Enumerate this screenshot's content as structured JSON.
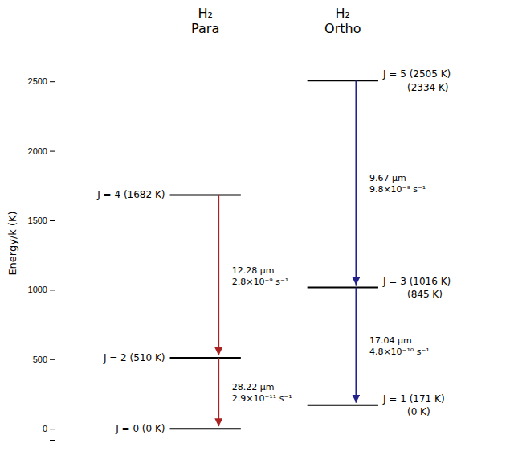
{
  "chart_data": {
    "type": "energy_level",
    "ylabel": "Energy/k (K)",
    "ylim": [
      -80,
      2750
    ],
    "yticks": [
      0,
      500,
      1000,
      1500,
      2000,
      2500
    ],
    "groups": [
      {
        "title": [
          "H₂",
          "Para"
        ],
        "levels": {
          "color": "#000000",
          "values": [
            0,
            510,
            1682
          ],
          "labels": [
            [
              "J = 0  (0 K)"
            ],
            [
              "J = 2  (510 K)"
            ],
            [
              "J = 4  (1682 K)"
            ]
          ]
        },
        "transitions": {
          "color": "#aa2222",
          "from": [
            1682,
            510
          ],
          "to": [
            510,
            0
          ],
          "labels": [
            [
              "12.28 μm",
              "2.8×10⁻⁹ s⁻¹"
            ],
            [
              "28.22 μm",
              "2.9×10⁻¹¹ s⁻¹"
            ]
          ]
        }
      },
      {
        "title": [
          "H₂",
          "Ortho"
        ],
        "levels": {
          "color": "#000000",
          "values": [
            171,
            1016,
            2505
          ],
          "labels": [
            [
              "J = 1   (171 K)",
              "(0 K)"
            ],
            [
              "J = 3  (1016 K)",
              "(845 K)"
            ],
            [
              "J = 5  (2505 K)",
              "(2334 K)"
            ]
          ]
        },
        "transitions": {
          "color": "#22228a",
          "from": [
            2505,
            1016
          ],
          "to": [
            1016,
            171
          ],
          "labels": [
            [
              "9.67 μm",
              "9.8×10⁻⁹ s⁻¹"
            ],
            [
              "17.04 μm",
              "4.8×10⁻¹⁰ s⁻¹"
            ]
          ]
        }
      }
    ]
  }
}
